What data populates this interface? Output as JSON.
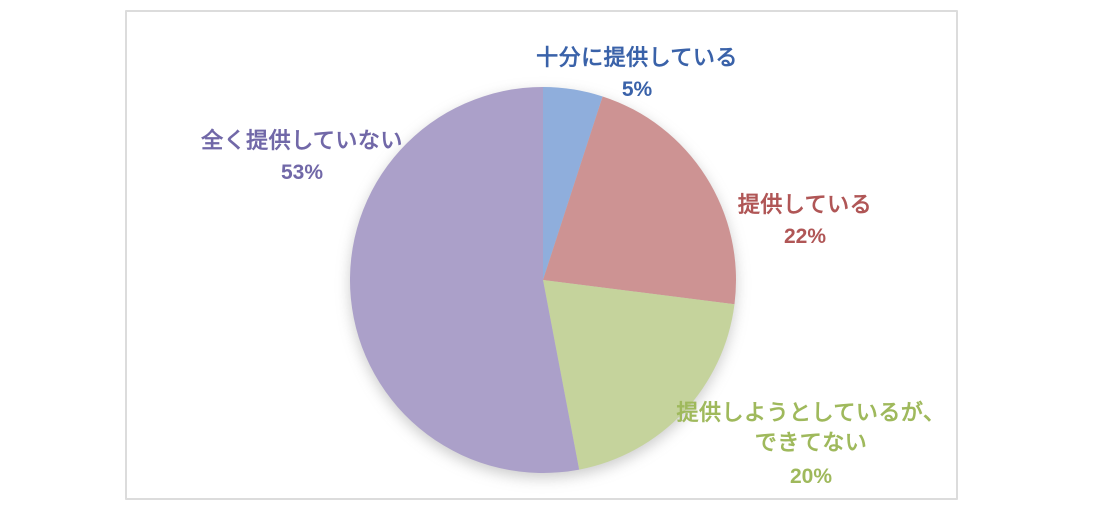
{
  "chart_data": {
    "type": "pie",
    "title": "",
    "categories": [
      "十分に提供している",
      "提供している",
      "提供しようとしているが、できてない",
      "全く提供していない"
    ],
    "values": [
      5,
      22,
      20,
      53
    ],
    "unit": "%",
    "start_angle_deg": -90,
    "direction": "clockwise",
    "slice_colors": [
      "#8FAEDC",
      "#CD9393",
      "#C5D39C",
      "#ABA0C9"
    ],
    "label_colors": [
      "#3A62A9",
      "#B05656",
      "#9FB95C",
      "#7168A8"
    ],
    "legend_position": "none",
    "data_labels": "outside, category name + percentage"
  },
  "callouts": [
    {
      "line1": "十分に提供している",
      "pct": "5%"
    },
    {
      "line1": "提供している",
      "pct": "22%"
    },
    {
      "line1": "提供しようとしているが、",
      "line2": "できてない",
      "pct": "20%"
    },
    {
      "line1": "全く提供していない",
      "pct": "53%"
    }
  ],
  "frame": {
    "border_color": "#DCDCDC",
    "background": "#FFFFFF"
  }
}
